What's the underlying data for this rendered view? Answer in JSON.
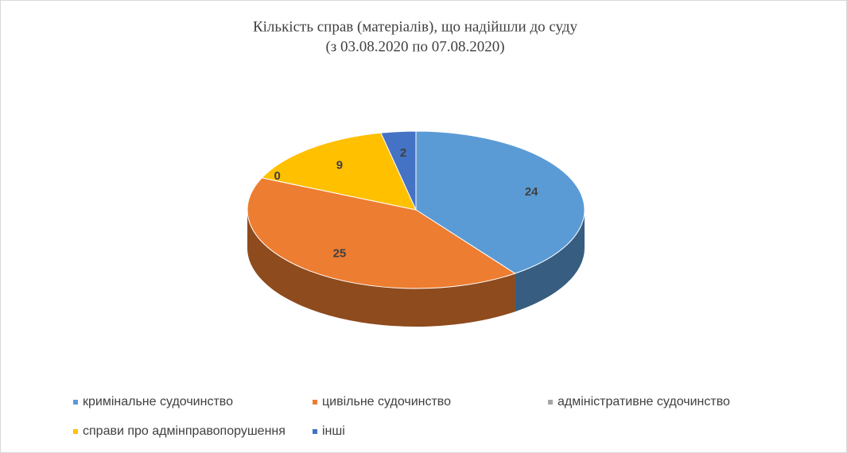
{
  "chart_data": {
    "type": "pie3d",
    "title": "Кількість справ (матеріалів), що надійшли до суду",
    "subtitle": "(з 03.08.2020 по 07.08.2020)",
    "categories": [
      "кримінальне судочинство",
      "цивільне судочинство",
      "адміністративне судочинство",
      "справи про адмінправопорушення",
      "інші"
    ],
    "values": [
      24,
      25,
      0,
      9,
      2
    ],
    "colors": [
      "#5b9bd5",
      "#ed7d31",
      "#a5a5a5",
      "#ffc000",
      "#4472c4"
    ],
    "legend": "bottom"
  }
}
